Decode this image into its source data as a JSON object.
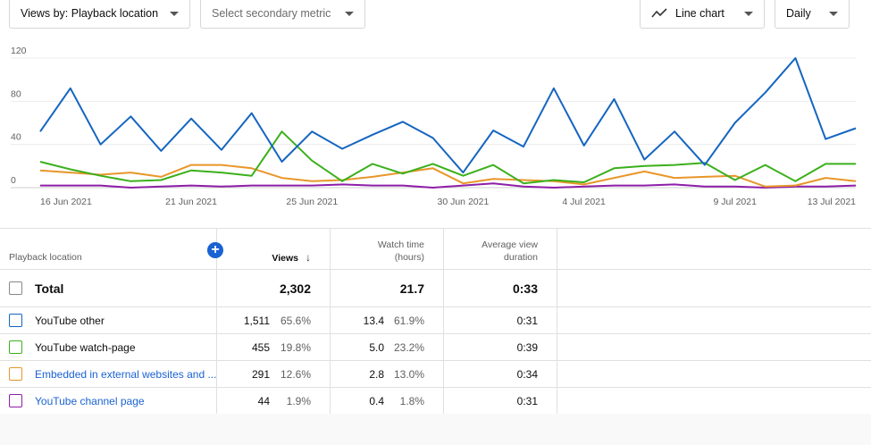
{
  "toolbar": {
    "views_by": "Views by: Playback location",
    "secondary_metric": "Select secondary metric",
    "chart_type": "Line chart",
    "period": "Daily"
  },
  "chart_data": {
    "type": "line",
    "x": [
      "2021-06-16",
      "2021-06-17",
      "2021-06-18",
      "2021-06-19",
      "2021-06-20",
      "2021-06-21",
      "2021-06-22",
      "2021-06-23",
      "2021-06-24",
      "2021-06-25",
      "2021-06-26",
      "2021-06-27",
      "2021-06-28",
      "2021-06-29",
      "2021-06-30",
      "2021-07-01",
      "2021-07-02",
      "2021-07-03",
      "2021-07-04",
      "2021-07-05",
      "2021-07-06",
      "2021-07-07",
      "2021-07-08",
      "2021-07-09",
      "2021-07-10",
      "2021-07-11",
      "2021-07-12",
      "2021-07-13"
    ],
    "x_tick_labels": [
      "16 Jun 2021",
      "21 Jun 2021",
      "25 Jun 2021",
      "30 Jun 2021",
      "4 Jul 2021",
      "9 Jul 2021",
      "13 Jul 2021"
    ],
    "x_tick_index": [
      0,
      5,
      9,
      14,
      18,
      23,
      27
    ],
    "y_ticks": [
      0,
      40,
      80,
      120
    ],
    "ylim": [
      0,
      120
    ],
    "grid": true,
    "series": [
      {
        "name": "YouTube other",
        "color": "#1565c0",
        "values": [
          52,
          92,
          40,
          66,
          34,
          64,
          35,
          69,
          24,
          52,
          36,
          49,
          61,
          46,
          14,
          53,
          38,
          92,
          39,
          82,
          26,
          52,
          21,
          60,
          88,
          120,
          45,
          55
        ]
      },
      {
        "name": "YouTube watch-page",
        "color": "#3bb01c",
        "values": [
          24,
          17,
          11,
          6,
          7,
          16,
          14,
          11,
          52,
          25,
          6,
          22,
          13,
          22,
          11,
          21,
          4,
          7,
          5,
          18,
          20,
          21,
          23,
          7,
          21,
          6,
          22,
          22
        ]
      },
      {
        "name": "Embedded in external websites and apps",
        "color": "#e8962a",
        "values": [
          16,
          14,
          12,
          14,
          10,
          21,
          21,
          18,
          9,
          6,
          7,
          10,
          14,
          18,
          4,
          8,
          7,
          6,
          3,
          9,
          15,
          9,
          10,
          11,
          1,
          2,
          9,
          6
        ]
      },
      {
        "name": "YouTube channel page",
        "color": "#8e1ea8",
        "values": [
          2,
          2,
          2,
          0,
          1,
          2,
          1,
          2,
          2,
          2,
          3,
          2,
          2,
          0,
          2,
          4,
          1,
          0,
          1,
          2,
          2,
          3,
          1,
          1,
          0,
          1,
          1,
          2
        ]
      }
    ]
  },
  "table": {
    "headers": {
      "location": "Playback location",
      "views": "Views",
      "watch_time_1": "Watch time",
      "watch_time_2": "(hours)",
      "avg_1": "Average view",
      "avg_2": "duration"
    },
    "total": {
      "label": "Total",
      "views": "2,302",
      "watch": "21.7",
      "avg": "0:33"
    },
    "rows": [
      {
        "label": "YouTube other",
        "views": "1,511",
        "views_pct": "65.6%",
        "watch": "13.4",
        "watch_pct": "61.9%",
        "avg": "0:31",
        "color": "#1565c0"
      },
      {
        "label": "YouTube watch-page",
        "views": "455",
        "views_pct": "19.8%",
        "watch": "5.0",
        "watch_pct": "23.2%",
        "avg": "0:39",
        "color": "#3bb01c"
      },
      {
        "label": "Embedded in external websites and ...",
        "views": "291",
        "views_pct": "12.6%",
        "watch": "2.8",
        "watch_pct": "13.0%",
        "avg": "0:34",
        "color": "#e8962a"
      },
      {
        "label": "YouTube channel page",
        "views": "44",
        "views_pct": "1.9%",
        "watch": "0.4",
        "watch_pct": "1.8%",
        "avg": "0:31",
        "color": "#8e1ea8"
      }
    ]
  }
}
